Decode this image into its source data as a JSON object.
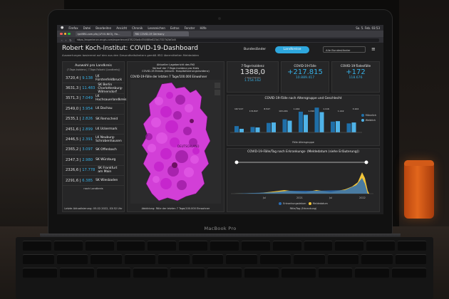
{
  "browser": {
    "menu": [
      "Firefox",
      "Datei",
      "Bearbeiten",
      "Ansicht",
      "Chronik",
      "Lesezeichen",
      "Extras",
      "Fenster",
      "Hilfe"
    ],
    "clock": "Sa. 5. Feb. 03:53",
    "tabs": [
      "rpnNRA.com.pfq (LFVU-NK3), Ho...",
      "RKI COVID-19 Germany"
    ],
    "url": "https://experience.arcgis.com/experience/478220a4c454480e823b17327b2bf1d4"
  },
  "dashboard": {
    "title": "Robert Koch-Institut: COVID-19-Dashboard",
    "subtitle": "Auswertungen basierend auf den aus den Gesundheitsämtern gemäß IfSG übermittelten Meldedaten",
    "toggle_left": "Bundesländer",
    "toggle_right": "Landkreise",
    "select": "Alle Bundesländer"
  },
  "left_panel": {
    "title": "Auswahl pro Landkreis",
    "subtitle": "(7-Tage-Inzidenz | 7-Tage-Fallzahl (Landkreis))",
    "rows": [
      {
        "a": "3720,4",
        "b": "9.138",
        "name": "LK Fürstenfeldbruck"
      },
      {
        "a": "3631,3",
        "b": "11.483",
        "name": "SK Berlin Charlottenburg-Wilmersdorf"
      },
      {
        "a": "3571,3",
        "b": "7.049",
        "name": "LK Hochsauerlandkreis"
      },
      {
        "a": "2549,0",
        "b": "3.954",
        "name": "LK Dachau"
      },
      {
        "a": "2535,1",
        "b": "2.826",
        "name": "SK Remscheid"
      },
      {
        "a": "2451,6",
        "b": "2.899",
        "name": "LK Uckermark"
      },
      {
        "a": "2446,5",
        "b": "2.391",
        "name": "LK Neuburg-Schrobenhausen"
      },
      {
        "a": "2365,2",
        "b": "3.097",
        "name": "SK Offenbach"
      },
      {
        "a": "2347,3",
        "b": "2.980",
        "name": "SK Würzburg"
      },
      {
        "a": "2326,6",
        "b": "17.778",
        "name": "SK Frankfurt am Main"
      },
      {
        "a": "2291,6",
        "b": "6.385",
        "name": "SK Wiesbaden"
      }
    ],
    "more": "nach Landkreis",
    "footer": "Letzte Aktualisierung: 05.02.2022, 03:52 Uhr"
  },
  "map_panel": {
    "note1": "Aktueller Lagebericht des RKI",
    "note2": "Verlauf der 7-Tage-Inzidenz pro Kreis",
    "note3": "COVID-19-Trends (einschl. Hospitalisierungsinzidenz)",
    "title": "COVID-19-Fälle der letzten 7 Tage/100.000 Einwohner",
    "city_label": "DEUTSCHLAND",
    "footer": "Abbildung: Fälle der letzten 7 Tage/100.000 Einwohner",
    "colors": {
      "low": "#e25be6",
      "mid": "#c21fc9",
      "high": "#9a1aa0",
      "hot": "#6c1062"
    }
  },
  "kpis": [
    {
      "label": "7-Tage-Inzidenz",
      "big": "1388,0",
      "small_label": "7-Tage-Fallzahl",
      "small": "1.154.162",
      "tiny": "seit 31.01.2022",
      "color": "#e6e6e6"
    },
    {
      "label": "COVID-19-Fälle",
      "big": "+217.815",
      "small": "10.889.417",
      "color": "#36b0e6"
    },
    {
      "label": "COVID-19-Todesfälle",
      "big": "+172",
      "small": "118.676",
      "color": "#36b0e6"
    }
  ],
  "age_chart": {
    "title": "COVID-19-Fälle nach Altersgruppe und Geschlecht",
    "xlabel": "Fälle Altersgruppe",
    "legend": [
      "Männlich",
      "Weiblich"
    ]
  },
  "time_chart": {
    "title": "COVID-19-Fälle/Tag nach Erkrankungs- (Meldedatum (siehe Erläuterung))",
    "ticks": [
      "Jul",
      "2021",
      "Jul",
      "2022"
    ],
    "legend": [
      "Erkrankungsdatum",
      "Meldedatum"
    ],
    "xlabel": "Fälle/Tag (Erkrankung)"
  },
  "chart_data": {
    "type": "bar",
    "series": [
      {
        "name": "Männlich",
        "values": [
          70,
          60,
          105,
          145,
          230,
          275,
          120,
          100
        ]
      },
      {
        "name": "Weiblich",
        "values": [
          40,
          55,
          110,
          130,
          195,
          225,
          125,
          110
        ]
      }
    ],
    "data_labels": [
      "167.417",
      "174.847",
      "8.547",
      "103.246",
      "1.444",
      "1.096",
      "1.116",
      "1.142",
      "3.104"
    ],
    "legend": [
      "Männlich",
      "Weiblich"
    ],
    "xlabel": "Fälle Altersgruppe"
  },
  "laptop": {
    "brand": "MacBook Pro"
  }
}
